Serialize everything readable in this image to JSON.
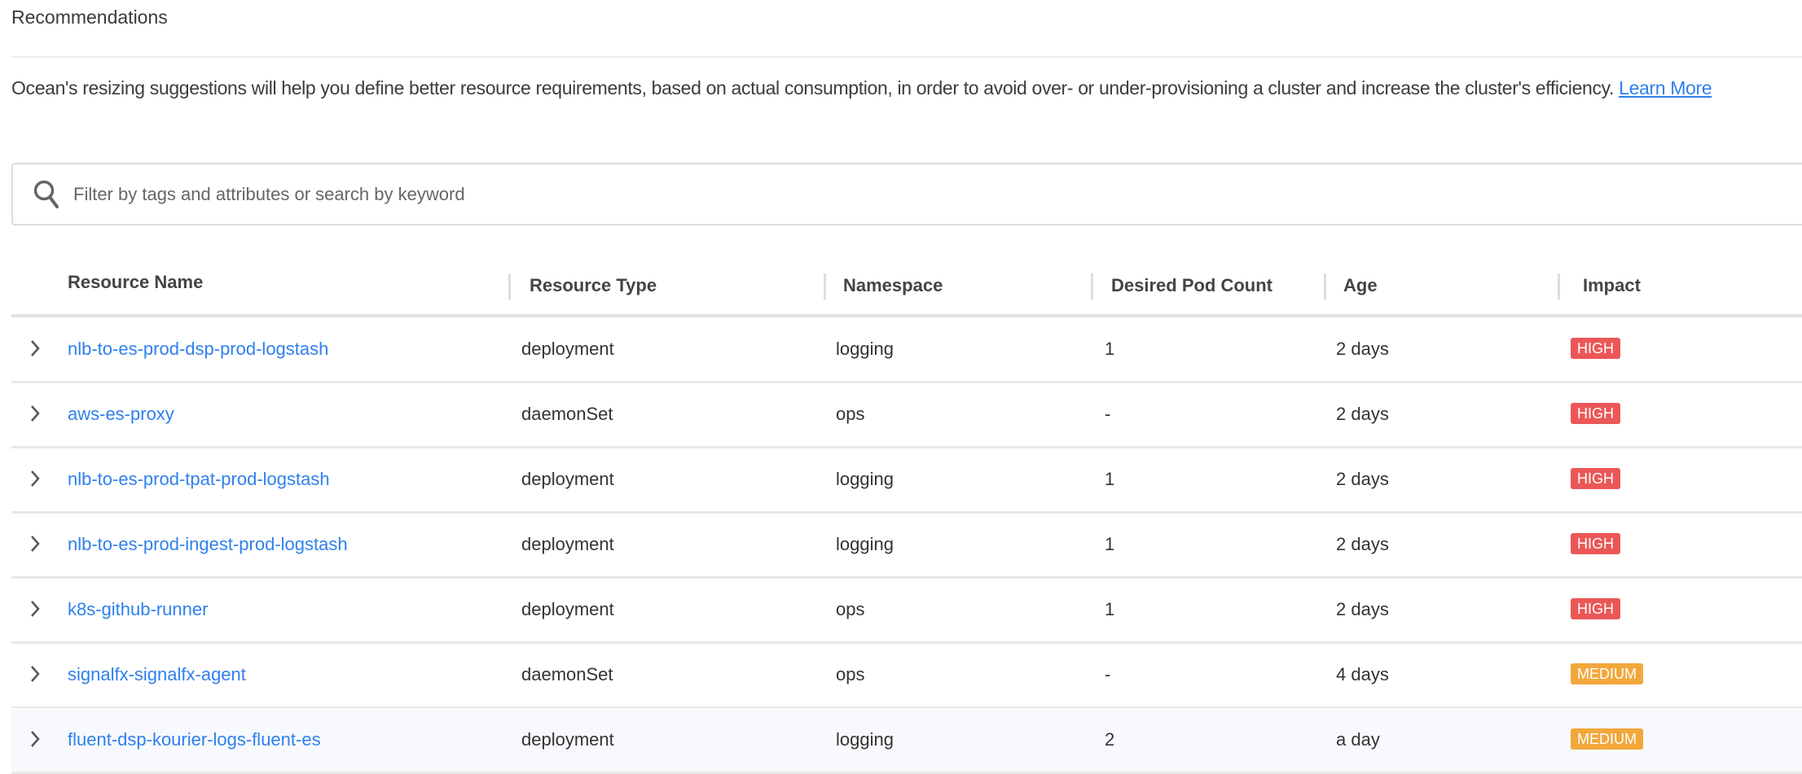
{
  "title": "Recommendations",
  "description": {
    "text": "Ocean's resizing suggestions will help you define better resource requirements, based on actual consumption, in order to avoid over- or under-provisioning a cluster and increase the cluster's efficiency. ",
    "link": "Learn More"
  },
  "search": {
    "placeholder": "Filter by tags and attributes or search by keyword",
    "icon": "search-icon"
  },
  "colors": {
    "link": "#2f80ed",
    "high": "#eb5757",
    "medium": "#f2a73b"
  },
  "table": {
    "columns": [
      "Resource Name",
      "Resource Type",
      "Namespace",
      "Desired Pod Count",
      "Age",
      "Impact"
    ],
    "rows": [
      {
        "name": "nlb-to-es-prod-dsp-prod-logstash",
        "type": "deployment",
        "namespace": "logging",
        "pods": "1",
        "age": "2 days",
        "impact": "HIGH"
      },
      {
        "name": "aws-es-proxy",
        "type": "daemonSet",
        "namespace": "ops",
        "pods": "-",
        "age": "2 days",
        "impact": "HIGH"
      },
      {
        "name": "nlb-to-es-prod-tpat-prod-logstash",
        "type": "deployment",
        "namespace": "logging",
        "pods": "1",
        "age": "2 days",
        "impact": "HIGH"
      },
      {
        "name": "nlb-to-es-prod-ingest-prod-logstash",
        "type": "deployment",
        "namespace": "logging",
        "pods": "1",
        "age": "2 days",
        "impact": "HIGH"
      },
      {
        "name": "k8s-github-runner",
        "type": "deployment",
        "namespace": "ops",
        "pods": "1",
        "age": "2 days",
        "impact": "HIGH"
      },
      {
        "name": "signalfx-signalfx-agent",
        "type": "daemonSet",
        "namespace": "ops",
        "pods": "-",
        "age": "4 days",
        "impact": "MEDIUM"
      },
      {
        "name": "fluent-dsp-kourier-logs-fluent-es",
        "type": "deployment",
        "namespace": "logging",
        "pods": "2",
        "age": "a day",
        "impact": "MEDIUM"
      }
    ]
  }
}
